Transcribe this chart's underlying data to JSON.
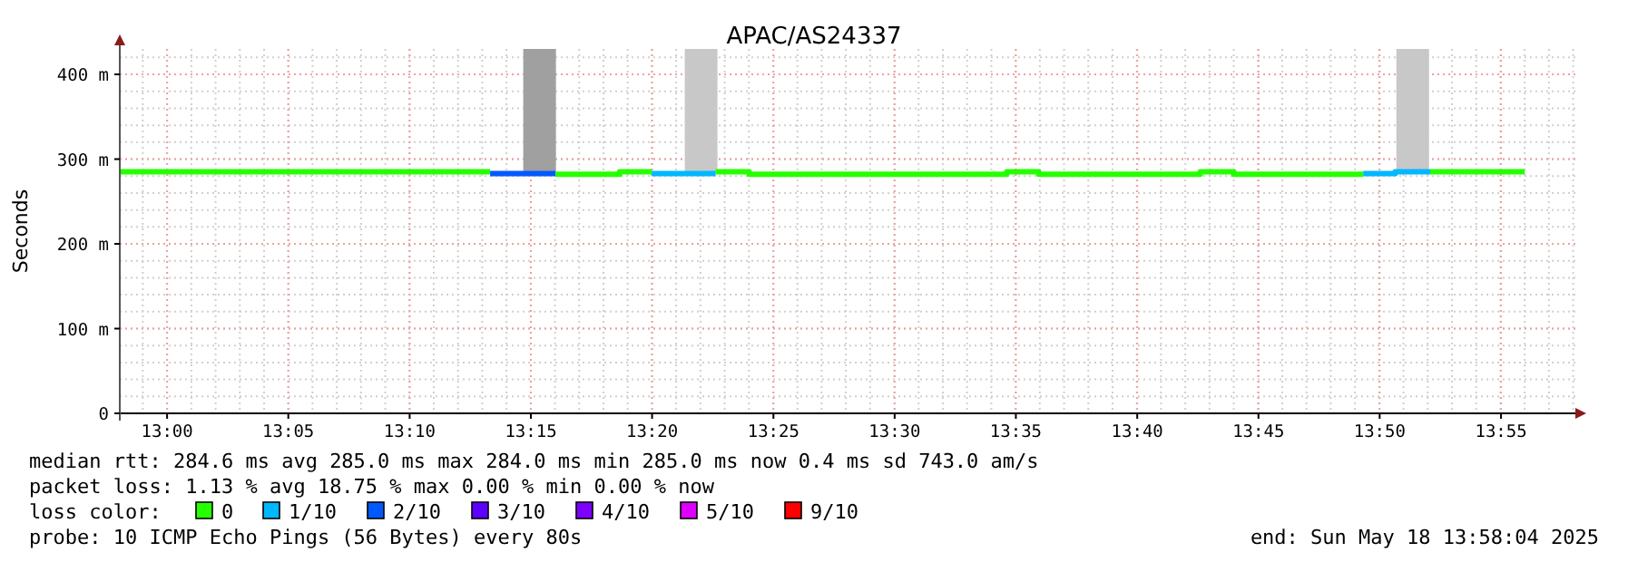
{
  "chart_data": {
    "type": "line",
    "title": "APAC/AS24337",
    "ylabel": "Seconds",
    "legend_title": "loss color:",
    "legend": "bottom",
    "grid": true,
    "xlim": [
      12.9675,
      13.9678
    ],
    "xticks": [
      {
        "value": 13,
        "label": "13:00"
      },
      {
        "value": 13.0833,
        "label": "13:05"
      },
      {
        "value": 13.1667,
        "label": "13:10"
      },
      {
        "value": 13.25,
        "label": "13:15"
      },
      {
        "value": 13.3333,
        "label": "13:20"
      },
      {
        "value": 13.4167,
        "label": "13:25"
      },
      {
        "value": 13.5,
        "label": "13:30"
      },
      {
        "value": 13.5833,
        "label": "13:35"
      },
      {
        "value": 13.6667,
        "label": "13:40"
      },
      {
        "value": 13.75,
        "label": "13:45"
      },
      {
        "value": 13.8333,
        "label": "13:50"
      },
      {
        "value": 13.9167,
        "label": "13:55"
      }
    ],
    "ylim": [
      0,
      430
    ],
    "yticks": [
      {
        "value": 0,
        "label": "0"
      },
      {
        "value": 100,
        "label": "100 m"
      },
      {
        "value": 200,
        "label": "200 m"
      },
      {
        "value": 300,
        "label": "300 m"
      },
      {
        "value": 400,
        "label": "400 m"
      }
    ],
    "series": [
      {
        "type": "bar",
        "x": [
          13.256,
          13.367,
          13.856
        ],
        "base": [
          285,
          285,
          285
        ],
        "values": [
          145,
          145,
          145
        ],
        "colors": [
          "#a0a0a0",
          "#c8c8c8",
          "#c8c8c8"
        ]
      },
      {
        "name": "0",
        "color": "#26ff00",
        "x": [
          12.968,
          13.222
        ],
        "values": [
          285,
          285
        ]
      },
      {
        "name": "1/10",
        "color": "#00b8ff",
        "x": [
          13.333,
          13.377
        ],
        "values": [
          283,
          283
        ]
      },
      {
        "name": "2/10",
        "color": "#0059ff",
        "x": [
          13.222,
          13.267
        ],
        "values": [
          283,
          283
        ]
      },
      {
        "name": "3/10",
        "color": "#5e00ff"
      },
      {
        "name": "4/10",
        "color": "#7e00ff"
      },
      {
        "name": "5/10",
        "color": "#dd00ff"
      },
      {
        "name": "9/10",
        "color": "#ff0000"
      },
      {
        "color": "#26ff00",
        "x": [
          13.267,
          13.311,
          13.311,
          13.333
        ],
        "values": [
          282,
          282,
          285,
          285
        ]
      },
      {
        "color": "#26ff00",
        "x": [
          13.377,
          13.4,
          13.4,
          13.577,
          13.577,
          13.599,
          13.599,
          13.71,
          13.71,
          13.733,
          13.733,
          13.822
        ],
        "values": [
          285,
          285,
          282,
          282,
          285,
          285,
          282,
          282,
          285,
          285,
          282,
          282
        ]
      },
      {
        "color": "#26ff00",
        "x": [
          13.868,
          13.933
        ],
        "values": [
          285,
          285
        ]
      },
      {
        "color": "#00b8ff",
        "x": [
          13.822,
          13.844,
          13.844,
          13.868
        ],
        "values": [
          283,
          283,
          285,
          285
        ]
      }
    ],
    "annotations": [
      "median rtt:  284.6 ms avg  285.0 ms max  284.0 ms min  285.0 ms now  0.4 ms sd  743.0   am/s",
      "packet loss: 1.13 % avg  18.75 % max  0.00 % min  0.00 % now",
      "probe:       10 ICMP Echo Pings (56 Bytes) every 80s",
      "end: Sun May 18 13:58:04 2025"
    ]
  }
}
